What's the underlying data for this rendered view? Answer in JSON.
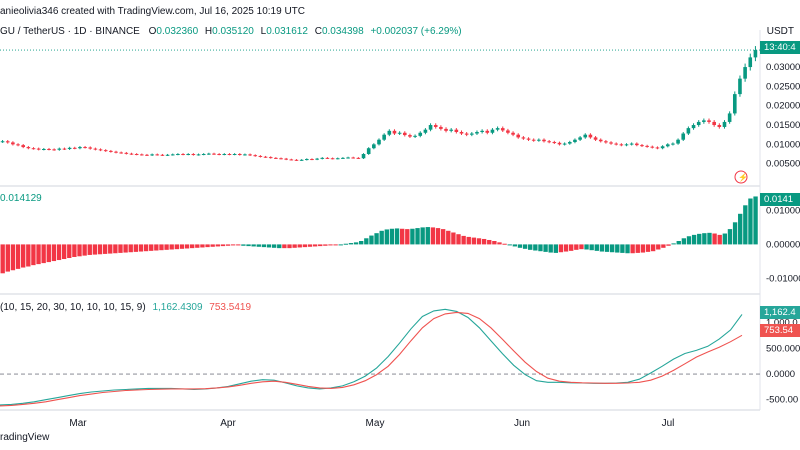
{
  "header": {
    "created_line": "anieolivia346 created with TradingView.com, Jul 16, 2025 10:19 UTC",
    "symbol": "GU / TetherUS · 1D · BINANCE",
    "o_label": "O",
    "o_value": "0.032360",
    "h_label": "H",
    "h_value": "0.035120",
    "l_label": "L",
    "l_value": "0.031612",
    "c_label": "C",
    "c_value": "0.034398",
    "change": "+0.002037 (+6.29%)",
    "currency": "USDT"
  },
  "indicator1": {
    "value_label": "0.014129",
    "box": "0.0141"
  },
  "indicator2": {
    "params": "(10, 15, 20, 30, 10, 10, 10, 15, 9)",
    "line1_value": "1,162.4309",
    "line2_value": "753.5419",
    "box1": "1,162.4",
    "box2": "753.54"
  },
  "footer": {
    "brand": "radingView"
  },
  "colors": {
    "up": "#089981",
    "down": "#f23645",
    "line1": "#26a69a",
    "line2": "#ef5350",
    "axis": "#131722"
  },
  "chart_data": [
    {
      "type": "candlestick",
      "title": "GU / TetherUS · 1D · BINANCE",
      "ylabel": "USDT",
      "ylim": [
        0.0,
        0.037
      ],
      "y_ticks": [
        "0.00500",
        "0.01000",
        "0.01500",
        "0.02000",
        "0.02500",
        "0.03000"
      ],
      "x_ticks": [
        "Mar",
        "Apr",
        "May",
        "Jun",
        "Jul"
      ],
      "last_time": "13:40:4",
      "close": [
        0.0108,
        0.0105,
        0.01,
        0.0098,
        0.0093,
        0.009,
        0.0089,
        0.0087,
        0.0088,
        0.0087,
        0.0086,
        0.0089,
        0.0088,
        0.0091,
        0.009,
        0.0093,
        0.0092,
        0.0089,
        0.0087,
        0.0085,
        0.0083,
        0.0081,
        0.0079,
        0.0078,
        0.0076,
        0.0075,
        0.0074,
        0.0073,
        0.0072,
        0.0074,
        0.0073,
        0.0072,
        0.0073,
        0.0074,
        0.0075,
        0.0074,
        0.0075,
        0.0073,
        0.0074,
        0.0075,
        0.0076,
        0.0075,
        0.0074,
        0.0075,
        0.0074,
        0.0075,
        0.0073,
        0.0074,
        0.0072,
        0.007,
        0.0068,
        0.0067,
        0.0065,
        0.0064,
        0.0063,
        0.0061,
        0.006,
        0.0059,
        0.006,
        0.0062,
        0.0061,
        0.0063,
        0.0065,
        0.0064,
        0.0063,
        0.0064,
        0.0065,
        0.0066,
        0.0065,
        0.0064,
        0.0075,
        0.009,
        0.01,
        0.0112,
        0.0125,
        0.0135,
        0.0128,
        0.013,
        0.0124,
        0.012,
        0.0122,
        0.013,
        0.0138,
        0.015,
        0.0145,
        0.014,
        0.0135,
        0.0138,
        0.0132,
        0.0128,
        0.0125,
        0.0128,
        0.0132,
        0.0135,
        0.013,
        0.0138,
        0.0142,
        0.0136,
        0.013,
        0.0125,
        0.0118,
        0.0115,
        0.0112,
        0.011,
        0.0112,
        0.0108,
        0.0106,
        0.0104,
        0.01,
        0.0102,
        0.0106,
        0.0112,
        0.0118,
        0.0125,
        0.0118,
        0.0112,
        0.0108,
        0.0105,
        0.0102,
        0.01,
        0.0098,
        0.01,
        0.0102,
        0.0098,
        0.0096,
        0.0094,
        0.0092,
        0.009,
        0.0095,
        0.01,
        0.0102,
        0.0112,
        0.0128,
        0.0142,
        0.015,
        0.0158,
        0.0162,
        0.0158,
        0.015,
        0.0145,
        0.0158,
        0.018,
        0.023,
        0.027,
        0.03,
        0.0325,
        0.0344
      ]
    },
    {
      "type": "bar",
      "title": "0.014129",
      "ylim": [
        -0.014,
        0.016
      ],
      "y_ticks": [
        "-0.01000",
        "0.00000",
        "0.01000"
      ],
      "values": [
        -0.0085,
        -0.008,
        -0.0076,
        -0.0072,
        -0.0068,
        -0.0065,
        -0.0061,
        -0.0058,
        -0.0055,
        -0.0052,
        -0.0049,
        -0.0046,
        -0.0043,
        -0.004,
        -0.0037,
        -0.0035,
        -0.0033,
        -0.0031,
        -0.003,
        -0.0029,
        -0.0028,
        -0.0027,
        -0.0026,
        -0.0025,
        -0.0024,
        -0.0023,
        -0.0022,
        -0.0021,
        -0.002,
        -0.0019,
        -0.0018,
        -0.0017,
        -0.0016,
        -0.0015,
        -0.0014,
        -0.0013,
        -0.0012,
        -0.0011,
        -0.001,
        -0.0009,
        -0.0008,
        -0.0007,
        -0.0006,
        -0.0005,
        -0.0004,
        -0.0003,
        -0.0003,
        -0.0004,
        -0.0005,
        -0.0006,
        -0.0007,
        -0.0008,
        -0.0009,
        -0.001,
        -0.0011,
        -0.0011,
        -0.0011,
        -0.001,
        -0.0009,
        -0.0008,
        -0.0007,
        -0.0006,
        -0.0005,
        -0.0004,
        -0.0003,
        -0.0002,
        0.0,
        0.0002,
        0.0004,
        0.0006,
        0.001,
        0.0018,
        0.0026,
        0.0033,
        0.004,
        0.0044,
        0.0046,
        0.0047,
        0.0046,
        0.0045,
        0.0046,
        0.0048,
        0.005,
        0.0051,
        0.005,
        0.0048,
        0.0045,
        0.004,
        0.0035,
        0.003,
        0.0025,
        0.0022,
        0.002,
        0.0018,
        0.0016,
        0.0013,
        0.001,
        0.0006,
        0.0002,
        -0.0002,
        -0.0006,
        -0.001,
        -0.0013,
        -0.0016,
        -0.0018,
        -0.002,
        -0.0022,
        -0.0024,
        -0.0025,
        -0.0023,
        -0.0021,
        -0.0019,
        -0.0016,
        -0.0014,
        -0.0015,
        -0.0017,
        -0.0019,
        -0.0021,
        -0.0022,
        -0.0023,
        -0.0024,
        -0.0025,
        -0.0026,
        -0.0026,
        -0.0025,
        -0.0024,
        -0.0022,
        -0.002,
        -0.0015,
        -0.001,
        -0.0004,
        0.0003,
        0.001,
        0.0018,
        0.0024,
        0.0028,
        0.0031,
        0.0033,
        0.0034,
        0.0032,
        0.0028,
        0.0032,
        0.0045,
        0.0065,
        0.009,
        0.0115,
        0.0135,
        0.0141
      ]
    },
    {
      "type": "line",
      "title": "(10, 15, 20, 30, 10, 10, 10, 15, 9)",
      "ylim": [
        -700,
        1500
      ],
      "y_ticks": [
        "-500.00",
        "0.0000",
        "500.000",
        "1,000.0"
      ],
      "series": [
        {
          "name": "1,162.4309",
          "values": [
            -600,
            -590,
            -570,
            -540,
            -500,
            -460,
            -420,
            -380,
            -350,
            -330,
            -310,
            -300,
            -290,
            -280,
            -280,
            -280,
            -290,
            -300,
            -290,
            -270,
            -240,
            -190,
            -140,
            -110,
            -120,
            -170,
            -230,
            -270,
            -290,
            -270,
            -230,
            -150,
            -40,
            120,
            340,
            600,
            880,
            1120,
            1230,
            1260,
            1220,
            1100,
            900,
            650,
            400,
            170,
            -10,
            -130,
            -160,
            -160,
            -170,
            -175,
            -180,
            -180,
            -175,
            -160,
            -100,
            20,
            150,
            290,
            400,
            460,
            540,
            680,
            860,
            1162
          ]
        },
        {
          "name": "753.5419",
          "values": [
            -620,
            -610,
            -590,
            -570,
            -540,
            -500,
            -460,
            -420,
            -390,
            -360,
            -340,
            -320,
            -310,
            -300,
            -295,
            -290,
            -290,
            -290,
            -285,
            -270,
            -250,
            -220,
            -180,
            -150,
            -140,
            -160,
            -200,
            -240,
            -270,
            -280,
            -260,
            -210,
            -130,
            -10,
            150,
            380,
            650,
            900,
            1080,
            1170,
            1200,
            1180,
            1080,
            900,
            680,
            450,
            230,
            50,
            -80,
            -140,
            -160,
            -170,
            -175,
            -180,
            -180,
            -175,
            -160,
            -120,
            -40,
            70,
            200,
            330,
            430,
            520,
            630,
            754
          ]
        }
      ]
    }
  ]
}
